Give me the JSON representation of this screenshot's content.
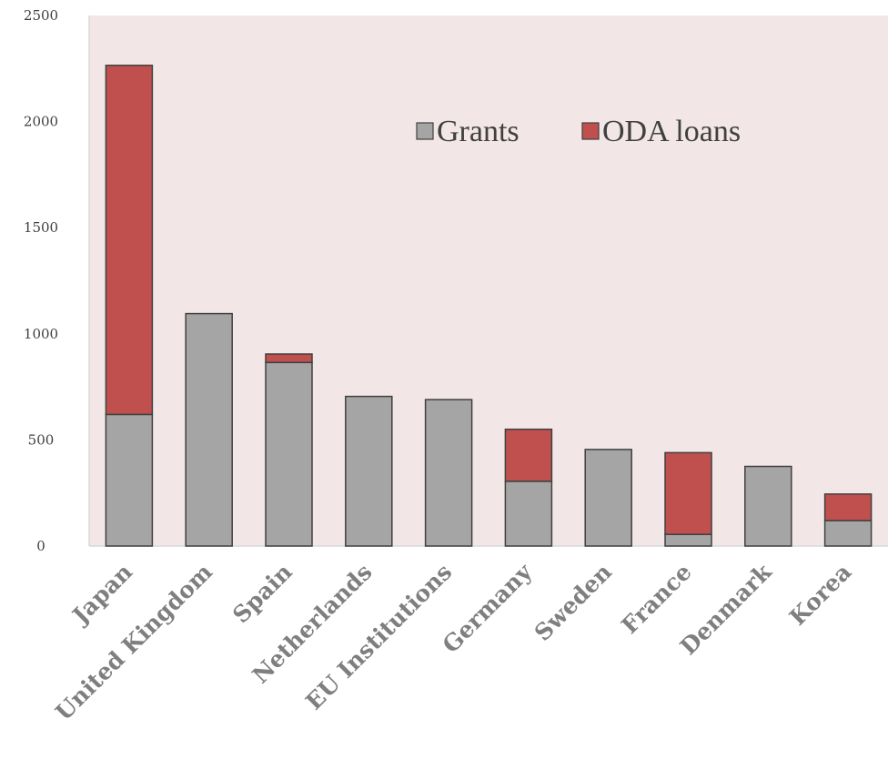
{
  "chart_data": {
    "type": "bar",
    "stacked": true,
    "title": "",
    "xlabel": "",
    "ylabel": "",
    "ylim": [
      0,
      2500
    ],
    "yticks": [
      0,
      500,
      1000,
      1500,
      2000,
      2500
    ],
    "grid": false,
    "legend_position": "top-right",
    "categories": [
      "Japan",
      "United Kingdom",
      "Spain",
      "Netherlands",
      "EU Institutions",
      "Germany",
      "Sweden",
      "France",
      "Denmark",
      "Korea"
    ],
    "series": [
      {
        "name": "Grants",
        "color": "#a5a5a5",
        "values": [
          620,
          1095,
          865,
          705,
          690,
          305,
          455,
          55,
          375,
          120
        ]
      },
      {
        "name": "ODA loans",
        "color": "#c0504d",
        "values": [
          1645,
          0,
          40,
          0,
          0,
          245,
          0,
          385,
          0,
          125
        ]
      }
    ],
    "plot_background": "#f2e6e6",
    "bar_outline": "#404040"
  }
}
